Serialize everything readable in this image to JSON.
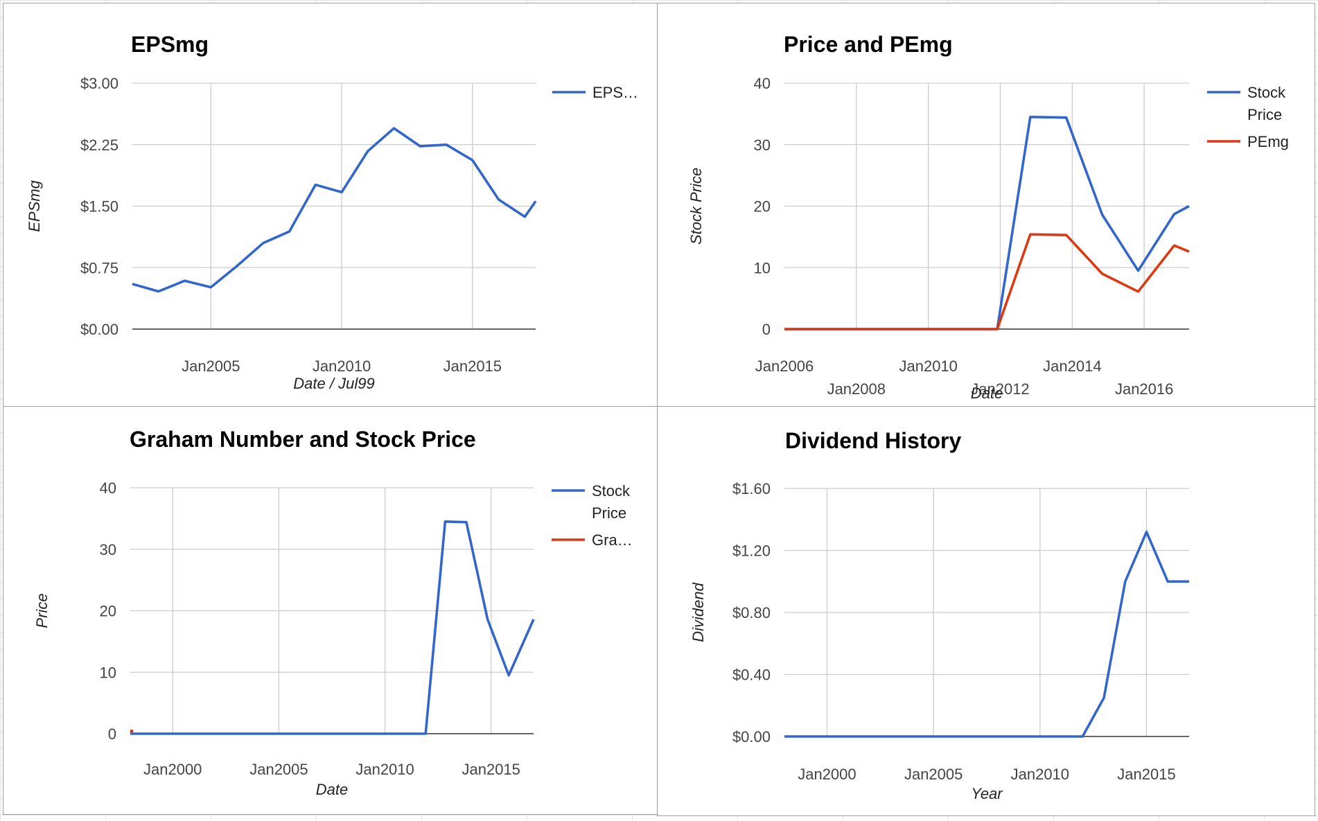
{
  "chart_data": [
    {
      "type": "line",
      "title": "EPSmg",
      "xlabel": "Date / Jul99",
      "ylabel": "EPSmg",
      "grid": true,
      "legend_position": "right",
      "x_type": "date",
      "xlim": [
        "2002-01-01",
        "2017-06-01"
      ],
      "ylim": [
        0,
        3
      ],
      "y_ticks": [
        0,
        0.75,
        1.5,
        2.25,
        3
      ],
      "y_tick_labels": [
        "$0.00",
        "$0.75",
        "$1.50",
        "$2.25",
        "$3.00"
      ],
      "x_ticks": [
        "2005-01-01",
        "2010-01-01",
        "2015-01-01"
      ],
      "x_tick_labels": [
        "Jan2005",
        "Jan2010",
        "Jan2015"
      ],
      "series": [
        {
          "name": "EPS…",
          "color": "#3366cc",
          "points": [
            [
              "2002-01-01",
              0.55
            ],
            [
              "2003-01-01",
              0.46
            ],
            [
              "2004-01-01",
              0.59
            ],
            [
              "2005-01-01",
              0.51
            ],
            [
              "2006-01-01",
              0.77
            ],
            [
              "2007-01-01",
              1.05
            ],
            [
              "2008-01-01",
              1.19
            ],
            [
              "2009-01-01",
              1.76
            ],
            [
              "2010-01-01",
              1.67
            ],
            [
              "2011-01-01",
              2.17
            ],
            [
              "2012-01-01",
              2.45
            ],
            [
              "2013-01-01",
              2.23
            ],
            [
              "2014-01-01",
              2.25
            ],
            [
              "2015-01-01",
              2.06
            ],
            [
              "2016-01-01",
              1.58
            ],
            [
              "2017-01-01",
              1.37
            ],
            [
              "2017-06-01",
              1.56
            ]
          ]
        }
      ]
    },
    {
      "type": "line",
      "title": "Price and PEmg",
      "xlabel": "Date",
      "ylabel": "Stock Price",
      "grid": true,
      "legend_position": "right",
      "x_type": "date",
      "xlim": [
        "2006-01-01",
        "2017-04-01"
      ],
      "ylim": [
        0,
        40
      ],
      "y_ticks": [
        0,
        10,
        20,
        30,
        40
      ],
      "y_tick_labels": [
        "0",
        "10",
        "20",
        "30",
        "40"
      ],
      "x_ticks": [
        "2006-01-01",
        "2008-01-01",
        "2010-01-01",
        "2012-01-01",
        "2014-01-01",
        "2016-01-01"
      ],
      "x_tick_labels": [
        "Jan2006",
        "Jan2008",
        "Jan2010",
        "Jan2012",
        "Jan2014",
        "Jan2016"
      ],
      "x_tick_labels_staggered": true,
      "series": [
        {
          "name": "Stock Price",
          "legend_lines": [
            "Stock",
            "Price"
          ],
          "color": "#3366cc",
          "points": [
            [
              "2006-01-01",
              0
            ],
            [
              "2011-12-01",
              0
            ],
            [
              "2012-11-01",
              34.5
            ],
            [
              "2013-11-01",
              34.4
            ],
            [
              "2014-11-01",
              18.6
            ],
            [
              "2015-11-01",
              9.5
            ],
            [
              "2016-11-01",
              18.7
            ],
            [
              "2017-04-01",
              20
            ]
          ]
        },
        {
          "name": "PEmg",
          "legend_lines": [
            "PEmg"
          ],
          "color": "#dc3912",
          "points": [
            [
              "2006-01-01",
              0
            ],
            [
              "2011-12-01",
              0
            ],
            [
              "2012-11-01",
              15.4
            ],
            [
              "2013-11-01",
              15.3
            ],
            [
              "2014-11-01",
              9.0
            ],
            [
              "2015-11-01",
              6.1
            ],
            [
              "2016-11-01",
              13.6
            ],
            [
              "2017-04-01",
              12.6
            ]
          ]
        }
      ]
    },
    {
      "type": "line",
      "title": "Graham Number and Stock Price",
      "xlabel": "Date",
      "ylabel": "Price",
      "grid": true,
      "legend_position": "right",
      "x_type": "date",
      "xlim": [
        "1998-01-01",
        "2017-01-01"
      ],
      "ylim": [
        0,
        40
      ],
      "y_ticks": [
        0,
        10,
        20,
        30,
        40
      ],
      "y_tick_labels": [
        "0",
        "10",
        "20",
        "30",
        "40"
      ],
      "x_ticks": [
        "2000-01-01",
        "2005-01-01",
        "2010-01-01",
        "2015-01-01"
      ],
      "x_tick_labels": [
        "Jan2000",
        "Jan2005",
        "Jan2010",
        "Jan2015"
      ],
      "series": [
        {
          "name": "Stock Price",
          "legend_lines": [
            "Stock",
            "Price"
          ],
          "color": "#3366cc",
          "points": [
            [
              "1998-01-01",
              0
            ],
            [
              "2011-12-01",
              0
            ],
            [
              "2012-11-01",
              34.5
            ],
            [
              "2013-11-01",
              34.4
            ],
            [
              "2014-11-01",
              18.6
            ],
            [
              "2015-11-01",
              9.5
            ],
            [
              "2017-01-01",
              18.6
            ]
          ]
        },
        {
          "name": "Gra…",
          "legend_lines": [
            "Gra…"
          ],
          "color": "#dc3912",
          "points": [
            [
              "1998-01-01",
              0.3
            ]
          ]
        }
      ]
    },
    {
      "type": "line",
      "title": "Dividend History",
      "xlabel": "Year",
      "ylabel": "Dividend",
      "grid": true,
      "legend_position": "none",
      "x_type": "date",
      "xlim": [
        "1998-01-01",
        "2017-01-01"
      ],
      "ylim": [
        0,
        1.6
      ],
      "y_ticks": [
        0,
        0.4,
        0.8,
        1.2,
        1.6
      ],
      "y_tick_labels": [
        "$0.00",
        "$0.40",
        "$0.80",
        "$1.20",
        "$1.60"
      ],
      "x_ticks": [
        "2000-01-01",
        "2005-01-01",
        "2010-01-01",
        "2015-01-01"
      ],
      "x_tick_labels": [
        "Jan2000",
        "Jan2005",
        "Jan2010",
        "Jan2015"
      ],
      "series": [
        {
          "name": "Dividend",
          "color": "#3366cc",
          "points": [
            [
              "1998-01-01",
              0
            ],
            [
              "2012-01-01",
              0
            ],
            [
              "2013-01-01",
              0.25
            ],
            [
              "2014-01-01",
              1.0
            ],
            [
              "2015-01-01",
              1.32
            ],
            [
              "2016-01-01",
              1.0
            ],
            [
              "2017-01-01",
              1.0
            ]
          ]
        }
      ]
    }
  ]
}
